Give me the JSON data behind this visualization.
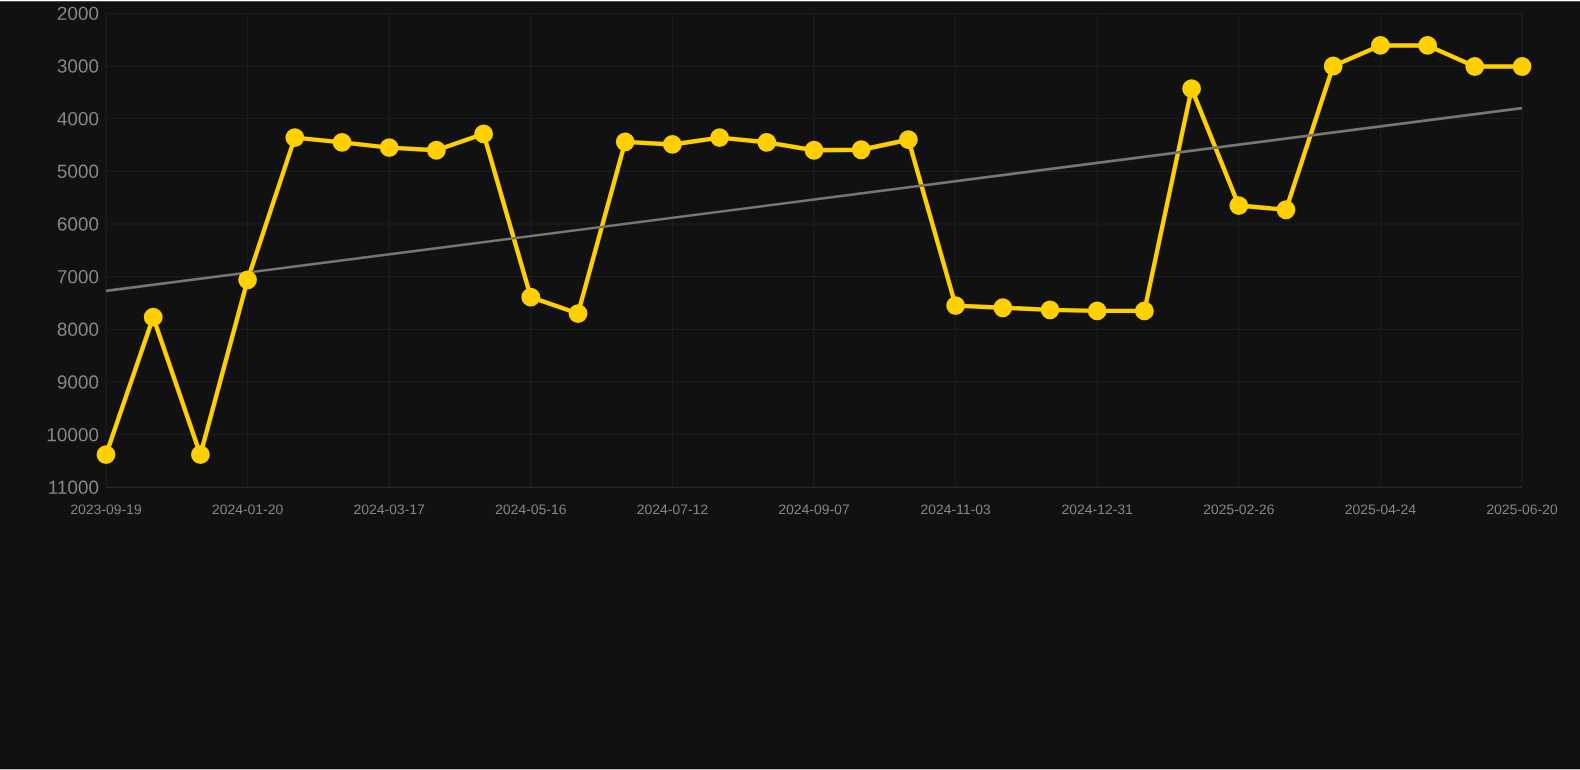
{
  "chart_data": {
    "type": "line",
    "categories": [
      "2023-09-19",
      null,
      null,
      "2024-01-20",
      null,
      null,
      "2024-03-17",
      null,
      null,
      "2024-05-16",
      null,
      null,
      "2024-07-12",
      null,
      null,
      "2024-09-07",
      null,
      null,
      "2024-11-03",
      null,
      null,
      "2024-12-31",
      null,
      null,
      "2025-02-26",
      null,
      null,
      "2025-04-24",
      null,
      null,
      "2025-06-20"
    ],
    "series": [
      {
        "color": "#ffd000",
        "marker": "circle",
        "values": [
          10380,
          7770,
          10380,
          7060,
          4360,
          4450,
          4550,
          4600,
          4290,
          7390,
          7700,
          4440,
          4490,
          4360,
          4450,
          4600,
          4590,
          4400,
          7550,
          7590,
          7630,
          7650,
          7650,
          3430,
          5650,
          5730,
          3000,
          2610,
          2610,
          3010,
          3010
        ]
      },
      {
        "type": "line",
        "color": "#777777",
        "marker": "none",
        "values": [
          7270,
          null,
          null,
          null,
          null,
          null,
          null,
          null,
          null,
          null,
          null,
          null,
          null,
          null,
          null,
          null,
          null,
          null,
          null,
          null,
          null,
          null,
          null,
          null,
          null,
          null,
          null,
          null,
          null,
          null,
          3800
        ]
      }
    ],
    "ylim": [
      11000,
      2000
    ],
    "yticks": [
      2000,
      3000,
      4000,
      5000,
      6000,
      7000,
      8000,
      9000,
      10000,
      11000
    ],
    "grid": true
  }
}
